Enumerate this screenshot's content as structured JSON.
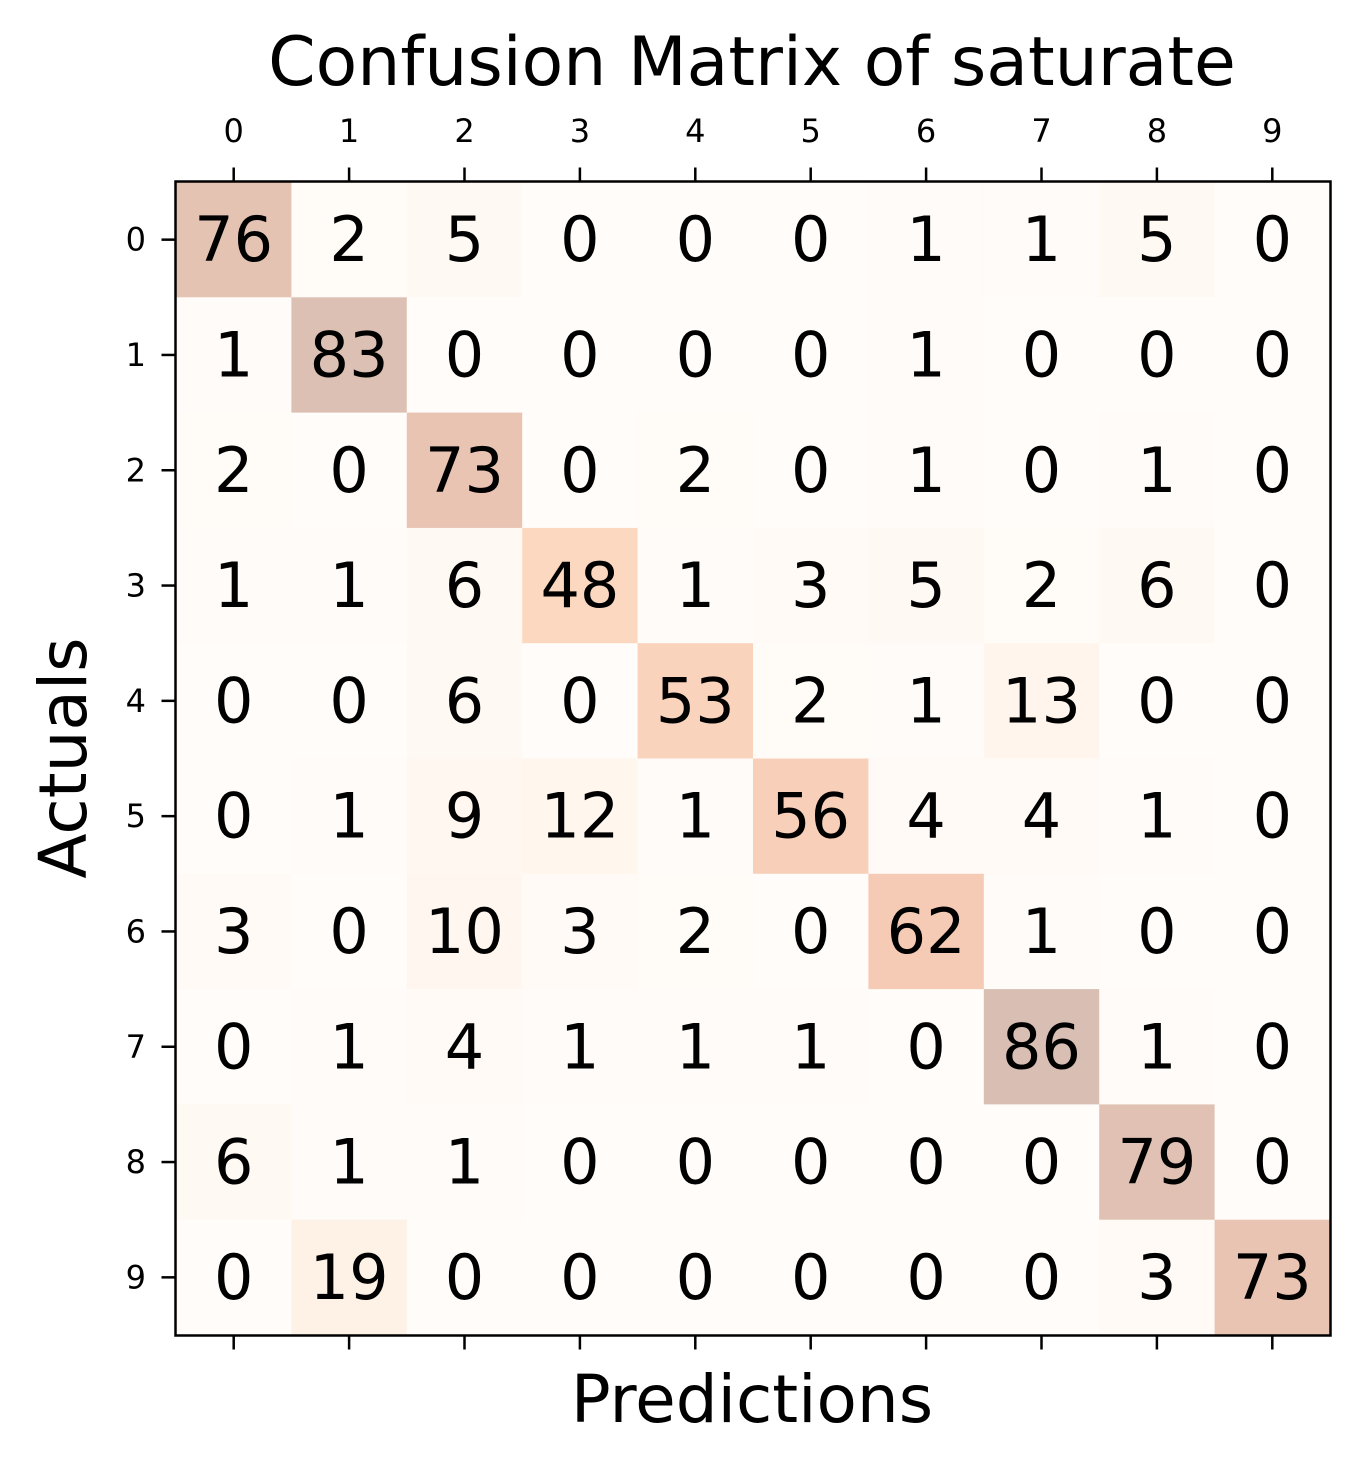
{
  "chart_data": {
    "type": "heatmap",
    "title": "Confusion Matrix of saturate",
    "xlabel": "Predictions",
    "ylabel": "Actuals",
    "x_ticks": [
      "0",
      "1",
      "2",
      "3",
      "4",
      "5",
      "6",
      "7",
      "8",
      "9"
    ],
    "y_ticks": [
      "0",
      "1",
      "2",
      "3",
      "4",
      "5",
      "6",
      "7",
      "8",
      "9"
    ],
    "x_tick_position": "top",
    "matrix": [
      [
        76,
        2,
        5,
        0,
        0,
        0,
        1,
        1,
        5,
        0
      ],
      [
        1,
        83,
        0,
        0,
        0,
        0,
        1,
        0,
        0,
        0
      ],
      [
        2,
        0,
        73,
        0,
        2,
        0,
        1,
        0,
        1,
        0
      ],
      [
        1,
        1,
        6,
        48,
        1,
        3,
        5,
        2,
        6,
        0
      ],
      [
        0,
        0,
        6,
        0,
        53,
        2,
        1,
        13,
        0,
        0
      ],
      [
        0,
        1,
        9,
        12,
        1,
        56,
        4,
        4,
        1,
        0
      ],
      [
        3,
        0,
        10,
        3,
        2,
        0,
        62,
        1,
        0,
        0
      ],
      [
        0,
        1,
        4,
        1,
        1,
        1,
        0,
        86,
        1,
        0
      ],
      [
        6,
        1,
        1,
        0,
        0,
        0,
        0,
        0,
        79,
        0
      ],
      [
        0,
        19,
        0,
        0,
        0,
        0,
        0,
        0,
        3,
        73
      ]
    ],
    "colormap": "Oranges",
    "grid": false,
    "legend": "none"
  }
}
